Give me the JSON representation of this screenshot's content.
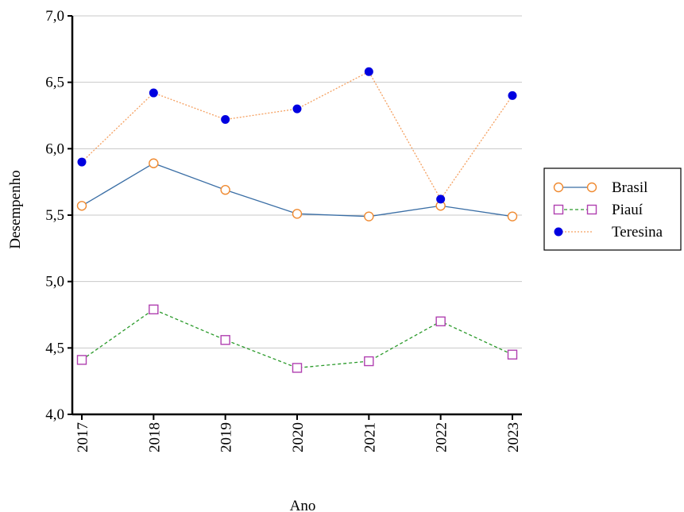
{
  "chart_data": {
    "type": "line",
    "title": "",
    "xlabel": "Ano",
    "ylabel": "Desempenho",
    "x": [
      "2017",
      "2018",
      "2019",
      "2020",
      "2021",
      "2022",
      "2023"
    ],
    "ylim": [
      4.0,
      7.0
    ],
    "yticks": [
      4.0,
      4.5,
      5.0,
      5.5,
      6.0,
      6.5,
      7.0
    ],
    "ytick_labels": [
      "4,0",
      "4,5",
      "5,0",
      "5,5",
      "6,0",
      "6,5",
      "7,0"
    ],
    "grid": true,
    "legend_position": "right",
    "series": [
      {
        "name": "Brasil",
        "values": [
          5.57,
          5.89,
          5.69,
          5.51,
          5.49,
          5.57,
          5.49
        ],
        "line_color": "#3a6ea5",
        "line_style": "solid",
        "marker": "open-circle",
        "marker_color": "#f08a30"
      },
      {
        "name": "Piauí",
        "values": [
          4.41,
          4.79,
          4.56,
          4.35,
          4.4,
          4.7,
          4.45
        ],
        "line_color": "#2a9a2a",
        "line_style": "dashed",
        "marker": "open-square",
        "marker_color": "#b040b0"
      },
      {
        "name": "Teresina",
        "values": [
          5.9,
          6.42,
          6.22,
          6.3,
          6.58,
          5.62,
          6.4
        ],
        "line_color": "#f5a060",
        "line_style": "dotted",
        "marker": "filled-circle",
        "marker_color": "#0000e0"
      }
    ]
  }
}
